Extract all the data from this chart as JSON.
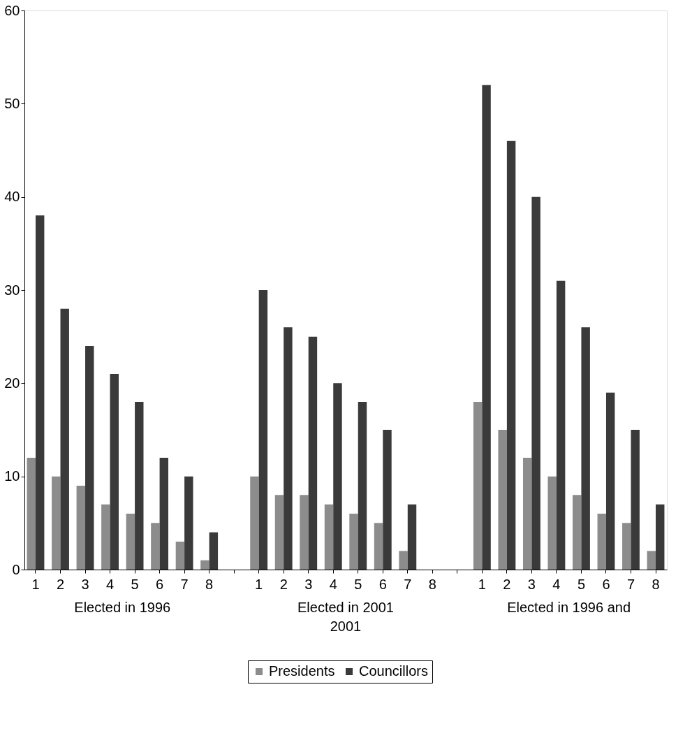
{
  "chart_data": {
    "type": "bar",
    "categories": [
      "1",
      "2",
      "3",
      "4",
      "5",
      "6",
      "7",
      "8",
      null,
      "1",
      "2",
      "3",
      "4",
      "5",
      "6",
      "7",
      "8",
      null,
      "1",
      "2",
      "3",
      "4",
      "5",
      "6",
      "7",
      "8"
    ],
    "series": [
      {
        "name": "Presidents",
        "color": "#8c8c8c",
        "values": [
          12,
          10,
          9,
          7,
          6,
          5,
          3,
          1,
          null,
          10,
          8,
          8,
          7,
          6,
          5,
          2,
          0,
          null,
          18,
          15,
          12,
          10,
          8,
          6,
          5,
          2
        ]
      },
      {
        "name": "Councillors",
        "color": "#3a3a3a",
        "values": [
          38,
          28,
          24,
          21,
          18,
          12,
          10,
          4,
          null,
          30,
          26,
          25,
          20,
          18,
          15,
          7,
          0,
          null,
          52,
          46,
          40,
          31,
          26,
          19,
          15,
          7
        ]
      }
    ],
    "ylim": [
      0,
      60
    ],
    "yticks": [
      0,
      10,
      20,
      30,
      40,
      50,
      60
    ],
    "grid": false,
    "legend": "bottom",
    "annotations": [
      "Elected in 1996",
      "Elected in 2001\n2001",
      "Elected in 1996 and"
    ]
  }
}
